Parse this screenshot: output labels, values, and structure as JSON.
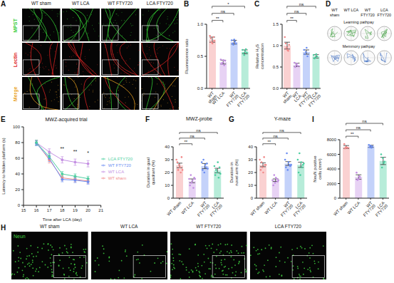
{
  "chart_data": [
    {
      "panel": "B",
      "type": "bar",
      "ylabel": "Fluorescence ratio",
      "categories": [
        "WT sham",
        "WT LCA",
        "WT FTY720",
        "LCA FTY720"
      ],
      "colors": [
        "#f28b8b",
        "#c48fe3",
        "#6b8ef2",
        "#4ccfa0"
      ],
      "values": [
        0.76,
        0.41,
        0.72,
        0.57
      ],
      "errors": [
        0.04,
        0.03,
        0.03,
        0.03
      ],
      "points": [
        [
          0.82,
          0.78,
          0.72,
          0.7,
          0.8,
          0.74
        ],
        [
          0.45,
          0.38,
          0.4,
          0.44,
          0.36,
          0.43
        ],
        [
          0.75,
          0.7,
          0.68,
          0.76,
          0.73,
          0.7
        ],
        [
          0.6,
          0.55,
          0.52,
          0.58,
          0.61,
          0.56
        ]
      ],
      "ylim": [
        0,
        1.0
      ],
      "yticks": [
        {
          "value": 0,
          "label": "0.0"
        },
        {
          "value": 0.5,
          "label": "0.5"
        },
        {
          "value": 1,
          "label": "1.0"
        }
      ],
      "grid": false,
      "significance": [
        {
          "groups": [
            "WT sham",
            "WT LCA"
          ],
          "label": "**"
        },
        {
          "groups": [
            "WT sham",
            "WT FTY720"
          ],
          "label": "ns"
        },
        {
          "groups": [
            "WT sham",
            "LCA FTY720"
          ],
          "label": "*"
        }
      ]
    },
    {
      "panel": "C",
      "type": "bar",
      "ylabel": "Relative H₂S concentration",
      "categories": [
        "WT sham",
        "WT LCA",
        "WT FTY720",
        "LCA FTY720"
      ],
      "colors": [
        "#f28b8b",
        "#c48fe3",
        "#6b8ef2",
        "#4ccfa0"
      ],
      "values": [
        1.0,
        0.55,
        0.85,
        0.75
      ],
      "errors": [
        0.08,
        0.04,
        0.05,
        0.04
      ],
      "points": [
        [
          1.2,
          1.05,
          0.95,
          0.9,
          0.88,
          1.02
        ],
        [
          0.6,
          0.5,
          0.55,
          0.58,
          0.52
        ],
        [
          0.9,
          0.8,
          0.85,
          0.95,
          0.75
        ],
        [
          0.78,
          0.7,
          0.72,
          0.8,
          0.75
        ]
      ],
      "ylim": [
        0,
        1.5
      ],
      "yticks": [
        {
          "value": 0,
          "label": "0.0"
        },
        {
          "value": 0.5,
          "label": "0.5"
        },
        {
          "value": 1,
          "label": "1.0"
        },
        {
          "value": 1.5,
          "label": "1.5"
        }
      ],
      "grid": false,
      "significance": [
        {
          "groups": [
            "WT sham",
            "WT LCA"
          ],
          "label": "**"
        },
        {
          "groups": [
            "WT sham",
            "WT FTY720"
          ],
          "label": "ns"
        },
        {
          "groups": [
            "WT sham",
            "LCA FTY720"
          ],
          "label": "ns"
        }
      ]
    },
    {
      "panel": "E",
      "type": "line",
      "title": "MWZ-acquired trial",
      "xlabel": "Time after LCA (day)",
      "ylabel": "Latency to hidden platform (s)",
      "x": [
        16,
        17,
        18,
        19,
        20
      ],
      "xlim": [
        15,
        21
      ],
      "xticks": [
        15,
        16,
        17,
        18,
        19,
        20,
        21
      ],
      "ylim": [
        0,
        100
      ],
      "yticks": [
        0,
        20,
        40,
        60,
        80,
        100
      ],
      "grid": false,
      "legend": "right",
      "series": [
        {
          "name": "WT sham",
          "color": "#f28b8b",
          "values": [
            80,
            58,
            35,
            33,
            31
          ],
          "errors": [
            3,
            4,
            3,
            3,
            3
          ]
        },
        {
          "name": "WT LCA",
          "color": "#c48fe3",
          "values": [
            80,
            68,
            58,
            55,
            53
          ],
          "errors": [
            3,
            4,
            4,
            4,
            4
          ]
        },
        {
          "name": "WT FTY720",
          "color": "#6b8ef2",
          "values": [
            79,
            60,
            33,
            32,
            30
          ],
          "errors": [
            3,
            4,
            3,
            3,
            3
          ]
        },
        {
          "name": "LCA FTY720",
          "color": "#4ccfa0",
          "values": [
            80,
            62,
            40,
            37,
            34
          ],
          "errors": [
            3,
            4,
            3,
            3,
            3
          ]
        }
      ],
      "annotations": [
        {
          "x": 18,
          "text": "**"
        },
        {
          "x": 19,
          "text": "**"
        },
        {
          "x": 20,
          "text": "*"
        }
      ]
    },
    {
      "panel": "F",
      "type": "bar",
      "title": "MWZ-probe",
      "ylabel": "Duration in goal quadrant (%)",
      "categories": [
        "WT sham",
        "WT LCA",
        "WT FTY720",
        "LCA FTY720"
      ],
      "colors": [
        "#f28b8b",
        "#c48fe3",
        "#6b8ef2",
        "#4ccfa0"
      ],
      "values": [
        25.5,
        13.5,
        25,
        21.5
      ],
      "errors": [
        1.8,
        1.5,
        2,
        1.8
      ],
      "points": [
        [
          30,
          28,
          22,
          26,
          24,
          20,
          32,
          22
        ],
        [
          15,
          10,
          18,
          12,
          14,
          8,
          16,
          15
        ],
        [
          28,
          22,
          30,
          20,
          26,
          24,
          27,
          23
        ],
        [
          25,
          18,
          22,
          20,
          28,
          16,
          24,
          19
        ]
      ],
      "ylim": [
        0,
        40
      ],
      "yticks": [
        0,
        10,
        20,
        30,
        40
      ],
      "grid": false,
      "significance": [
        {
          "groups": [
            "WT sham",
            "WT LCA"
          ],
          "label": "**"
        },
        {
          "groups": [
            "WT sham",
            "WT FTY720"
          ],
          "label": "ns"
        },
        {
          "groups": [
            "WT sham",
            "LCA FTY720"
          ],
          "label": "ns"
        }
      ]
    },
    {
      "panel": "G",
      "type": "bar",
      "title": "Y-maze",
      "ylabel": "Duration in novel arm (%)",
      "categories": [
        "WT sham",
        "WT LCA",
        "WT FTY720",
        "LCA FTY720"
      ],
      "colors": [
        "#f28b8b",
        "#c48fe3",
        "#6b8ef2",
        "#4ccfa0"
      ],
      "values": [
        26,
        14,
        27,
        26
      ],
      "errors": [
        1.5,
        1,
        1.5,
        2
      ],
      "points": [
        [
          30,
          22,
          28,
          24,
          20,
          32,
          26,
          26
        ],
        [
          14,
          10,
          18,
          12,
          16,
          15,
          13,
          14
        ],
        [
          30,
          24,
          35,
          22,
          28,
          26,
          25,
          26
        ],
        [
          30,
          20,
          35,
          18,
          28,
          24,
          26,
          27
        ]
      ],
      "ylim": [
        0,
        40
      ],
      "yticks": [
        0,
        10,
        20,
        30,
        40
      ],
      "grid": false,
      "significance": [
        {
          "groups": [
            "WT sham",
            "WT LCA"
          ],
          "label": "**"
        },
        {
          "groups": [
            "WT sham",
            "WT FTY720"
          ],
          "label": "ns"
        },
        {
          "groups": [
            "WT sham",
            "LCA FTY720"
          ],
          "label": "ns"
        }
      ]
    },
    {
      "panel": "I",
      "type": "bar",
      "ylabel": "NeuN positive cells (mm²)",
      "categories": [
        "WT sham",
        "WT LCA",
        "WT FTY720",
        "LCA FTY720"
      ],
      "colors": [
        "#f28b8b",
        "#c48fe3",
        "#6b8ef2",
        "#4ccfa0"
      ],
      "values": [
        7000,
        2900,
        7100,
        5100
      ],
      "errors": [
        200,
        300,
        150,
        500
      ],
      "points": [
        [
          7400,
          6800,
          7000,
          6900,
          6900
        ],
        [
          3500,
          2500,
          2600,
          3000,
          2900
        ],
        [
          7300,
          7000,
          7200,
          6900,
          7100
        ],
        [
          6000,
          4200,
          5500,
          4800,
          5000
        ]
      ],
      "ylim": [
        0,
        8000
      ],
      "yticks": [
        0,
        2000,
        4000,
        6000,
        8000
      ],
      "grid": false,
      "significance": [
        {
          "groups": [
            "WT sham",
            "WT LCA"
          ],
          "label": "**"
        },
        {
          "groups": [
            "WT sham",
            "WT FTY720"
          ],
          "label": "ns"
        },
        {
          "groups": [
            "WT sham",
            "LCA FTY720"
          ],
          "label": "ns"
        }
      ]
    }
  ],
  "images": [
    {
      "panel": "A",
      "columns": [
        "WT sham",
        "WT LCA",
        "WT FTY720",
        "LCA FTY720"
      ],
      "rows": [
        {
          "label": "MPST",
          "color": "#33cc33"
        },
        {
          "label": "Lectin",
          "color": "#dd2222"
        },
        {
          "label": "Merge",
          "color": "#e8a020"
        }
      ]
    },
    {
      "panel": "D",
      "columns": [
        "WT sham",
        "WT LCA",
        "WT FTY720",
        "LCA FTY720"
      ],
      "rows": [
        "Learning pathpay",
        "Memmory pathpay"
      ]
    },
    {
      "panel": "H",
      "columns": [
        "WT sham",
        "WT LCA",
        "WT FTY720",
        "LCA FTY720"
      ],
      "stain": {
        "label": "Neun",
        "color": "#40d040"
      }
    }
  ]
}
